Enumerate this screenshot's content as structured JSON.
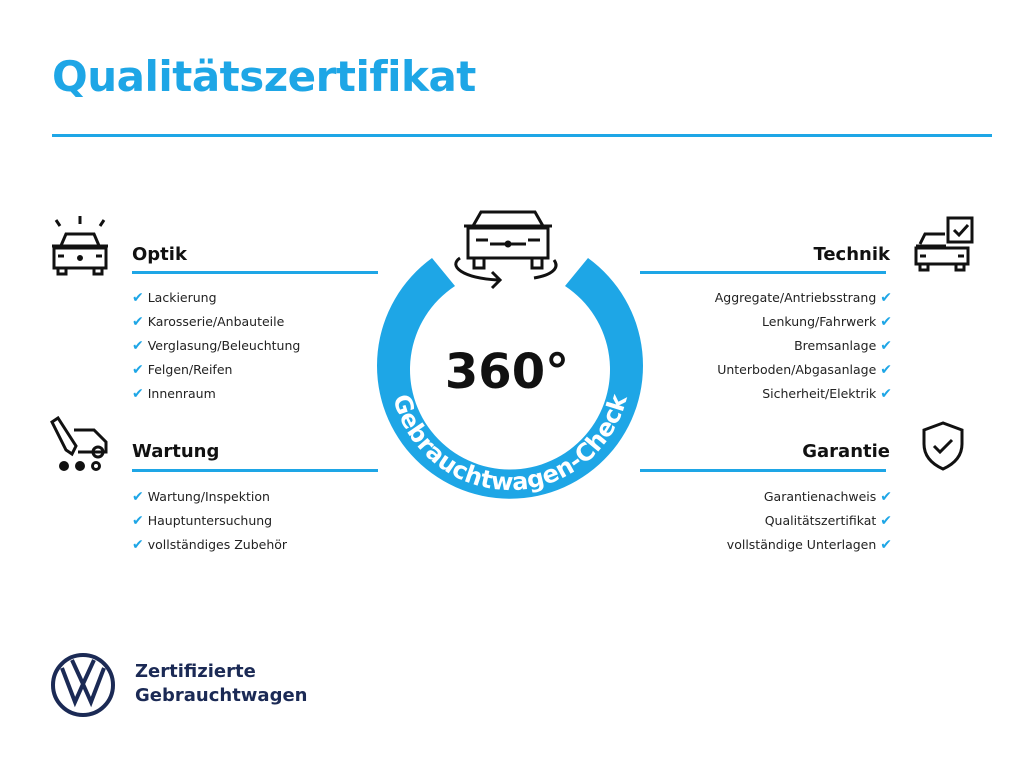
{
  "title": "Qualitätszertifikat",
  "center": {
    "big": "360°",
    "ring": "Gebrauchtwagen-Check"
  },
  "sections": {
    "optik": {
      "title": "Optik",
      "items": [
        "Lackierung",
        "Karosserie/Anbauteile",
        "Verglasung/Beleuchtung",
        "Felgen/Reifen",
        "Innenraum"
      ]
    },
    "wartung": {
      "title": "Wartung",
      "items": [
        "Wartung/Inspektion",
        "Hauptuntersuchung",
        "vollständiges Zubehör"
      ]
    },
    "technik": {
      "title": "Technik",
      "items": [
        "Aggregate/Antriebsstrang",
        "Lenkung/Fahrwerk",
        "Bremsanlage",
        "Unterboden/Abgasanlage",
        "Sicherheit/Elektrik"
      ]
    },
    "garantie": {
      "title": "Garantie",
      "items": [
        "Garantienachweis",
        "Qualitätszertifikat",
        "vollständige Unterlagen"
      ]
    }
  },
  "check_mark": "✔",
  "logo": {
    "line1": "Zertifizierte",
    "line2": "Gebrauchtwagen"
  },
  "colors": {
    "accent": "#1ea6e6",
    "brand_navy": "#1b2a55"
  }
}
